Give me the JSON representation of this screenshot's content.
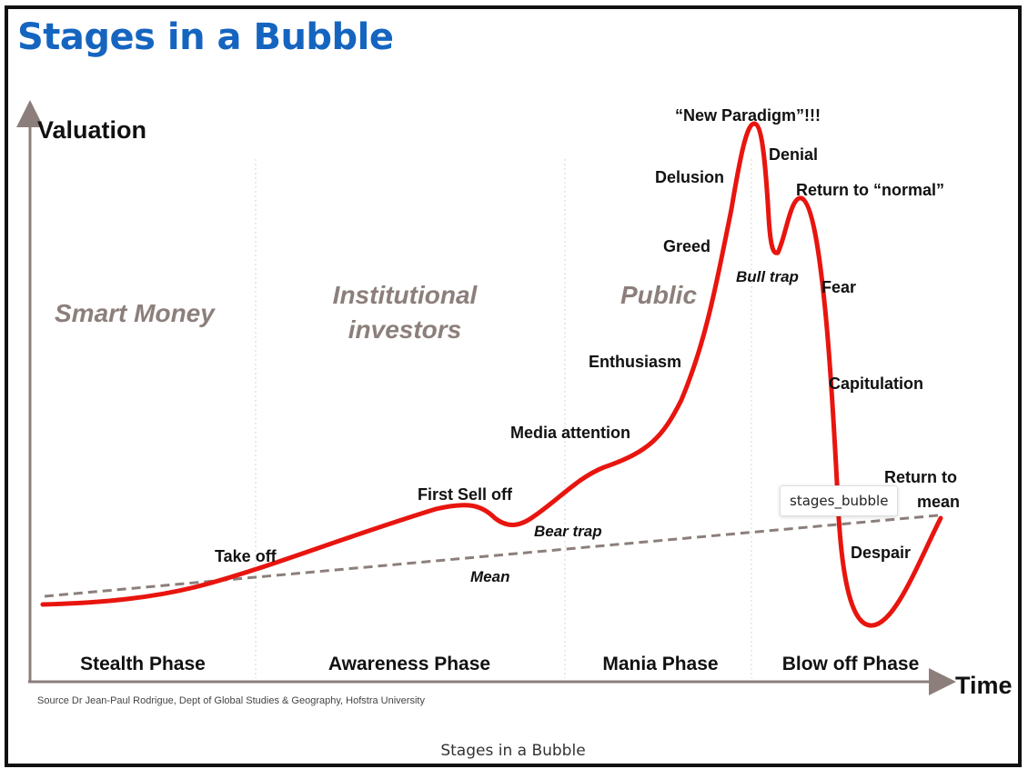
{
  "title": "Stages in a Bubble",
  "y_axis_label": "Valuation",
  "x_axis_label": "Time",
  "groups": {
    "smart_money": "Smart Money",
    "institutional_line1": "Institutional",
    "institutional_line2": "investors",
    "public": "Public"
  },
  "phases": {
    "stealth": "Stealth Phase",
    "awareness": "Awareness Phase",
    "mania": "Mania Phase",
    "blowoff": "Blow off Phase"
  },
  "annotations": {
    "take_off": "Take off",
    "first_sell_off": "First Sell off",
    "bear_trap": "Bear trap",
    "mean": "Mean",
    "media_attention": "Media attention",
    "enthusiasm": "Enthusiasm",
    "greed": "Greed",
    "delusion": "Delusion",
    "new_paradigm": "“New Paradigm”!!!",
    "denial": "Denial",
    "return_normal": "Return to “normal”",
    "bull_trap": "Bull trap",
    "fear": "Fear",
    "capitulation": "Capitulation",
    "return_mean_line1": "Return to",
    "return_mean_line2": "mean",
    "despair": "Despair"
  },
  "source": "Source Dr Jean-Paul Rodrigue, Dept of Global Studies & Geography, Hofstra University",
  "tooltip": "stages_bubble",
  "caption": "Stages in a Bubble",
  "colors": {
    "title": "#1565c0",
    "curve": "#e8150f",
    "axis": "#8c7f7b",
    "mean_line": "#8c7f7b",
    "group_label": "#8c7f7b"
  }
}
